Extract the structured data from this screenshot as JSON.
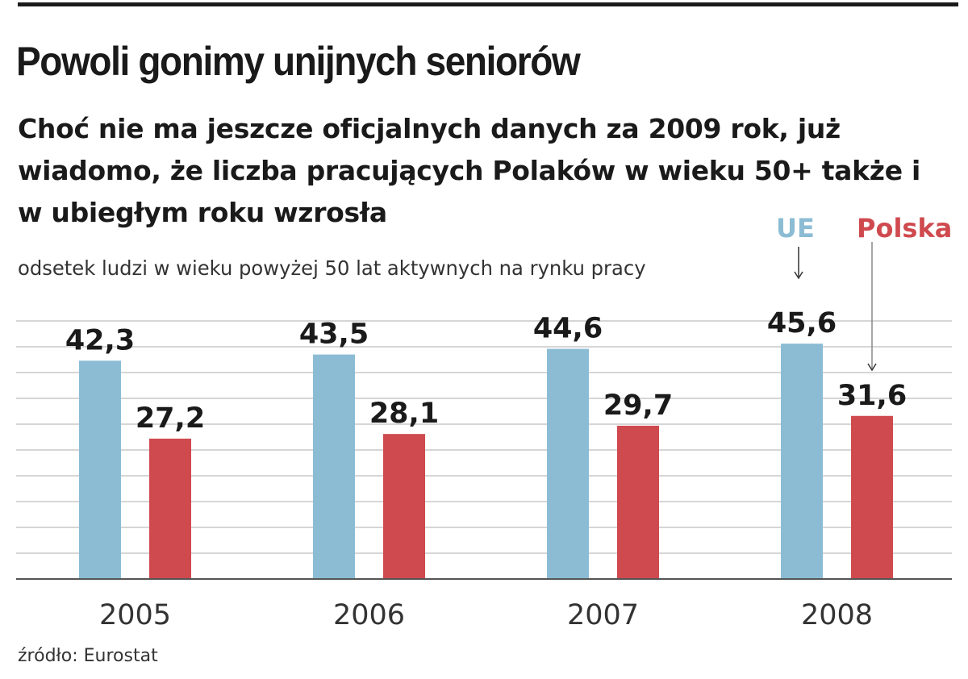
{
  "title": "Powoli gonimy unijnych seniorów",
  "subtitle": "Choć nie ma jeszcze oficjalnych danych za 2009 rok, już wiadomo, że liczba pracujących Polaków w wieku 50+ także i w ubiegłym roku wzrosła",
  "source": "źródło: Eurostat",
  "colors": {
    "ue": "#8bbcd4",
    "polska": "#cf4a4f",
    "grid": "#c9c9c9",
    "axis": "#555555"
  },
  "chart_data": {
    "type": "bar",
    "title": "Powoli gonimy unijnych seniorów",
    "ylabel": "odsetek ludzi w wieku powyżej 50 lat aktywnych na rynku pracy",
    "xlabel": "",
    "categories": [
      "2005",
      "2006",
      "2007",
      "2008"
    ],
    "series": [
      {
        "name": "UE",
        "values": [
          42.3,
          43.5,
          44.6,
          45.6
        ],
        "labels": [
          "42,3",
          "43,5",
          "44,6",
          "45,6"
        ]
      },
      {
        "name": "Polska",
        "values": [
          27.2,
          28.1,
          29.7,
          31.6
        ],
        "labels": [
          "27,2",
          "28,1",
          "29,7",
          "31,6"
        ]
      }
    ],
    "ylim": [
      0,
      50
    ],
    "grid": true,
    "legend": "top-right"
  }
}
